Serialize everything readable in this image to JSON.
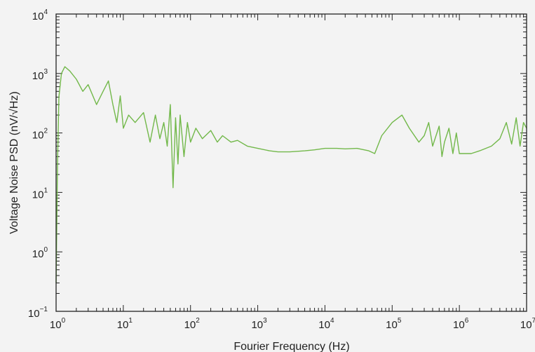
{
  "chart_data": {
    "type": "line",
    "x_scale": "log",
    "y_scale": "log",
    "xlabel": "Fourier Frequency (Hz)",
    "ylabel": "Voltage Noise PSD (nV/√Hz)",
    "xlim": [
      1,
      10000000
    ],
    "ylim": [
      0.1,
      10000
    ],
    "grid": false,
    "x_ticks": [
      {
        "base": "10",
        "exp": "0"
      },
      {
        "base": "10",
        "exp": "1"
      },
      {
        "base": "10",
        "exp": "2"
      },
      {
        "base": "10",
        "exp": "3"
      },
      {
        "base": "10",
        "exp": "4"
      },
      {
        "base": "10",
        "exp": "5"
      },
      {
        "base": "10",
        "exp": "6"
      },
      {
        "base": "10",
        "exp": "7"
      }
    ],
    "y_ticks": [
      {
        "base": "10",
        "exp": "−1"
      },
      {
        "base": "10",
        "exp": "0"
      },
      {
        "base": "10",
        "exp": "1"
      },
      {
        "base": "10",
        "exp": "2"
      },
      {
        "base": "10",
        "exp": "3"
      },
      {
        "base": "10",
        "exp": "4"
      }
    ],
    "series_color": "#72b84a",
    "series": [
      {
        "x": [
          1.0,
          1.05,
          1.1,
          1.2,
          1.35,
          1.6,
          2.0,
          2.5,
          3.0,
          4.0,
          5.0,
          6.0,
          7.0,
          8.0,
          9.0,
          10.0,
          12.0,
          15.0,
          20.0,
          25.0,
          30.0,
          35.0,
          40.0,
          45.0,
          50.0,
          55.0,
          60.0,
          65.0,
          70.0,
          80.0,
          90.0,
          100.0,
          120.0,
          150.0,
          200.0,
          250.0,
          300.0,
          400.0,
          500.0,
          700.0,
          1000.0,
          1500.0,
          2000.0,
          3000.0,
          5000.0,
          7000.0,
          10000.0,
          15000.0,
          20000.0,
          30000.0,
          45000.0,
          55000.0,
          70000.0,
          100000.0,
          140000.0,
          180000.0,
          250000.0,
          300000.0,
          350000.0,
          400000.0,
          500000.0,
          550000.0,
          600000.0,
          700000.0,
          800000.0,
          900000.0,
          1000000.0,
          1500000.0,
          2000000.0,
          3000000.0,
          4000000.0,
          5000000.0,
          6000000.0,
          7000000.0,
          8000000.0,
          9000000.0,
          10000000.0
        ],
        "y": [
          0.3,
          30,
          400,
          1000,
          1300,
          1100,
          800,
          500,
          650,
          300,
          500,
          750,
          300,
          150,
          420,
          120,
          200,
          150,
          220,
          70,
          200,
          80,
          150,
          60,
          300,
          12,
          180,
          30,
          200,
          40,
          150,
          70,
          120,
          80,
          110,
          70,
          90,
          70,
          75,
          60,
          55,
          50,
          48,
          48,
          50,
          52,
          55,
          55,
          54,
          55,
          50,
          45,
          90,
          150,
          200,
          120,
          70,
          90,
          150,
          60,
          130,
          40,
          70,
          120,
          45,
          100,
          45,
          45,
          50,
          60,
          80,
          150,
          65,
          180,
          60,
          150,
          120
        ]
      }
    ]
  }
}
